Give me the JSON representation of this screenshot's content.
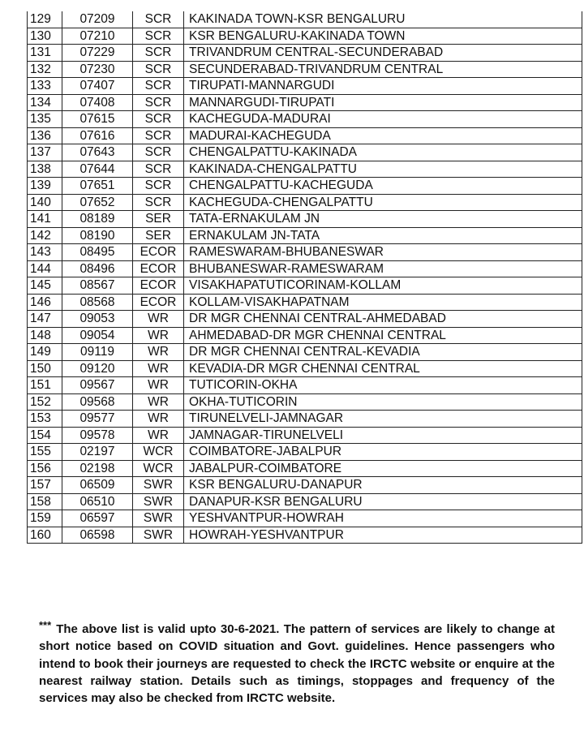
{
  "table": {
    "rows": [
      [
        "129",
        "07209",
        "SCR",
        "KAKINADA TOWN-KSR BENGALURU"
      ],
      [
        "130",
        "07210",
        "SCR",
        "KSR BENGALURU-KAKINADA TOWN"
      ],
      [
        "131",
        "07229",
        "SCR",
        "TRIVANDRUM CENTRAL-SECUNDERABAD"
      ],
      [
        "132",
        "07230",
        "SCR",
        "SECUNDERABAD-TRIVANDRUM CENTRAL"
      ],
      [
        "133",
        "07407",
        "SCR",
        "TIRUPATI-MANNARGUDI"
      ],
      [
        "134",
        "07408",
        "SCR",
        "MANNARGUDI-TIRUPATI"
      ],
      [
        "135",
        "07615",
        "SCR",
        "KACHEGUDA-MADURAI"
      ],
      [
        "136",
        "07616",
        "SCR",
        "MADURAI-KACHEGUDA"
      ],
      [
        "137",
        "07643",
        "SCR",
        "CHENGALPATTU-KAKINADA"
      ],
      [
        "138",
        "07644",
        "SCR",
        "KAKINADA-CHENGALPATTU"
      ],
      [
        "139",
        "07651",
        "SCR",
        "CHENGALPATTU-KACHEGUDA"
      ],
      [
        "140",
        "07652",
        "SCR",
        "KACHEGUDA-CHENGALPATTU"
      ],
      [
        "141",
        "08189",
        "SER",
        "TATA-ERNAKULAM JN"
      ],
      [
        "142",
        "08190",
        "SER",
        "ERNAKULAM JN-TATA"
      ],
      [
        "143",
        "08495",
        "ECOR",
        "RAMESWARAM-BHUBANESWAR"
      ],
      [
        "144",
        "08496",
        "ECOR",
        "BHUBANESWAR-RAMESWARAM"
      ],
      [
        "145",
        "08567",
        "ECOR",
        "VISAKHAPATUTICORINAM-KOLLAM"
      ],
      [
        "146",
        "08568",
        "ECOR",
        "KOLLAM-VISAKHAPATNAM"
      ],
      [
        "147",
        "09053",
        "WR",
        "DR MGR CHENNAI CENTRAL-AHMEDABAD"
      ],
      [
        "148",
        "09054",
        "WR",
        "AHMEDABAD-DR MGR CHENNAI CENTRAL"
      ],
      [
        "149",
        "09119",
        "WR",
        "DR MGR CHENNAI CENTRAL-KEVADIA"
      ],
      [
        "150",
        "09120",
        "WR",
        "KEVADIA-DR MGR CHENNAI CENTRAL"
      ],
      [
        "151",
        "09567",
        "WR",
        "TUTICORIN-OKHA"
      ],
      [
        "152",
        "09568",
        "WR",
        "OKHA-TUTICORIN"
      ],
      [
        "153",
        "09577",
        "WR",
        "TIRUNELVELI-JAMNAGAR"
      ],
      [
        "154",
        "09578",
        "WR",
        "JAMNAGAR-TIRUNELVELI"
      ],
      [
        "155",
        "02197",
        "WCR",
        "COIMBATORE-JABALPUR"
      ],
      [
        "156",
        "02198",
        "WCR",
        "JABALPUR-COIMBATORE"
      ],
      [
        "157",
        "06509",
        "SWR",
        "KSR BENGALURU-DANAPUR"
      ],
      [
        "158",
        "06510",
        "SWR",
        "DANAPUR-KSR BENGALURU"
      ],
      [
        "159",
        "06597",
        "SWR",
        "YESHVANTPUR-HOWRAH"
      ],
      [
        "160",
        "06598",
        "SWR",
        "HOWRAH-YESHVANTPUR"
      ]
    ]
  },
  "note": {
    "stars": "***",
    "text": "The above list is valid upto 30-6-2021.  The pattern of services are likely to change at short notice based on COVID situation and Govt. guidelines.  Hence passengers who intend to book their journeys are requested to check the IRCTC website or enquire at the nearest railway station.  Details such as timings, stoppages and frequency of the services may also be checked from IRCTC website."
  }
}
